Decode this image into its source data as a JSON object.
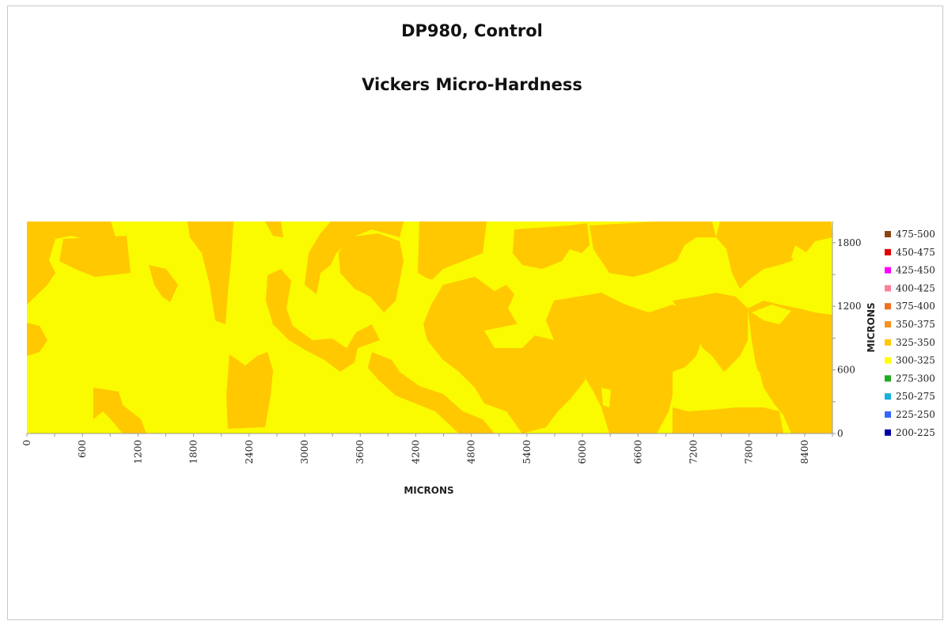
{
  "chart_data": {
    "type": "heatmap",
    "title": "DP980, Control",
    "subtitle": "Vickers Micro-Hardness",
    "xlabel": "MICRONS",
    "ylabel": "MICRONS",
    "xlim": [
      0,
      8700
    ],
    "ylim": [
      0,
      2000
    ],
    "x_ticks": [
      "0",
      "600",
      "1200",
      "1800",
      "2400",
      "3000",
      "3600",
      "4200",
      "4800",
      "5400",
      "6000",
      "6600",
      "7200",
      "7800",
      "8400"
    ],
    "y_ticks": [
      "0",
      "600",
      "1200",
      "1800"
    ],
    "legend_position": "right",
    "legend": [
      {
        "label": "475-500",
        "color": "#8B4513"
      },
      {
        "label": "450-475",
        "color": "#E00000"
      },
      {
        "label": "425-450",
        "color": "#FF00FF"
      },
      {
        "label": "400-425",
        "color": "#FF7F9F"
      },
      {
        "label": "375-400",
        "color": "#F07020"
      },
      {
        "label": "350-375",
        "color": "#F79320"
      },
      {
        "label": "325-350",
        "color": "#FFC800"
      },
      {
        "label": "300-325",
        "color": "#FFFF00"
      },
      {
        "label": "275-300",
        "color": "#22AA22"
      },
      {
        "label": "250-275",
        "color": "#17B0E0"
      },
      {
        "label": "225-250",
        "color": "#3366FF"
      },
      {
        "label": "200-225",
        "color": "#0000AA"
      }
    ],
    "region_colors": {
      "325-350": "#FFC800",
      "300-325": "#FAFA00"
    },
    "grid": false
  }
}
